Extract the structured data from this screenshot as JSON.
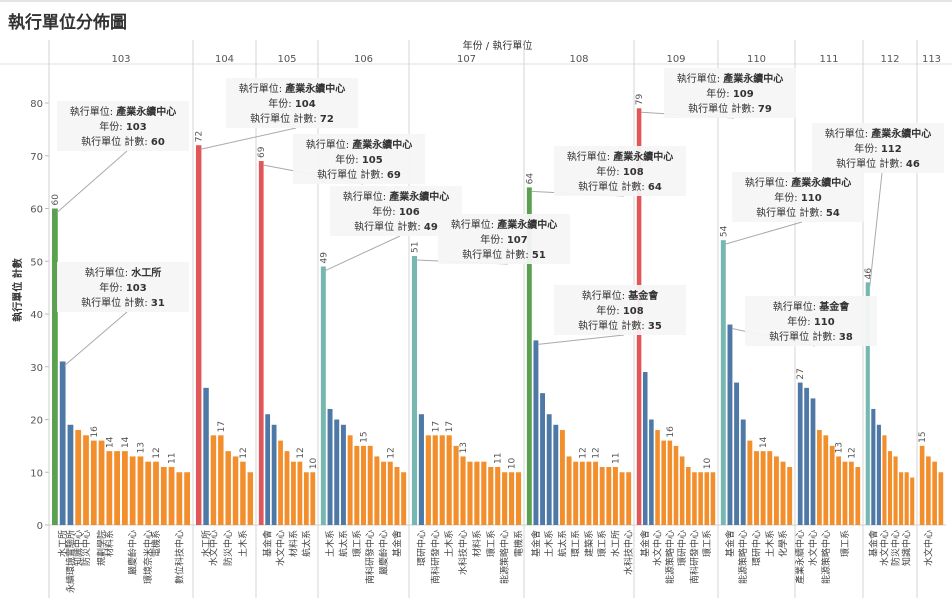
{
  "page": {
    "title": "執行單位分佈圖"
  },
  "chart_data": {
    "type": "bar",
    "title": "執行單位分佈圖",
    "xlabel": "年份 / 執行單位",
    "ylabel": "執行單位 計數",
    "ylim": [
      0,
      80
    ],
    "yticks": [
      0,
      10,
      20,
      30,
      40,
      50,
      60,
      70,
      80
    ],
    "grid": false,
    "colors": {
      "產業永續中心": "#59a14f",
      "水工所": "#4e79a7",
      "default": "#f28e2b",
      "highlight_104": "#e15759",
      "highlight_teal": "#76b7b2"
    },
    "groups": [
      {
        "year": "103",
        "bars": [
          {
            "label": "",
            "value": 60,
            "color": "#59a14f",
            "data_label": "60"
          },
          {
            "label": "水工所",
            "value": 31,
            "color": "#4e79a7"
          },
          {
            "label": "永續環境實驗所",
            "value": 19,
            "color": "#4e79a7"
          },
          {
            "label": "知識中心",
            "value": 18,
            "color": "#f28e2b"
          },
          {
            "label": "防災中心",
            "value": 17,
            "color": "#f28e2b"
          },
          {
            "label": "",
            "value": 16,
            "color": "#f28e2b",
            "data_label": "16"
          },
          {
            "label": "規劃學院",
            "value": 16,
            "color": "#f28e2b"
          },
          {
            "label": "材料系",
            "value": 14,
            "color": "#f28e2b",
            "data_label": "14"
          },
          {
            "label": "",
            "value": 14,
            "color": "#f28e2b"
          },
          {
            "label": "",
            "value": 14,
            "color": "#f28e2b",
            "data_label": "14"
          },
          {
            "label": "嚴慶齡中心",
            "value": 13,
            "color": "#f28e2b"
          },
          {
            "label": "",
            "value": 13,
            "color": "#f28e2b",
            "data_label": "13"
          },
          {
            "label": "環境奈米中心",
            "value": 12,
            "color": "#f28e2b"
          },
          {
            "label": "電機系",
            "value": 12,
            "color": "#f28e2b",
            "data_label": "12"
          },
          {
            "label": "",
            "value": 11,
            "color": "#f28e2b"
          },
          {
            "label": "",
            "value": 11,
            "color": "#f28e2b",
            "data_label": "11"
          },
          {
            "label": "數位科技中心",
            "value": 10,
            "color": "#f28e2b"
          },
          {
            "label": "",
            "value": 10,
            "color": "#f28e2b"
          }
        ]
      },
      {
        "year": "104",
        "bars": [
          {
            "label": "",
            "value": 72,
            "color": "#e15759",
            "data_label": "72"
          },
          {
            "label": "水工所",
            "value": 26,
            "color": "#4e79a7"
          },
          {
            "label": "水文中心",
            "value": 17,
            "color": "#f28e2b"
          },
          {
            "label": "",
            "value": 17,
            "color": "#f28e2b",
            "data_label": "17"
          },
          {
            "label": "防災中心",
            "value": 14,
            "color": "#f28e2b"
          },
          {
            "label": "",
            "value": 13,
            "color": "#f28e2b"
          },
          {
            "label": "土木系",
            "value": 12,
            "color": "#f28e2b",
            "data_label": "12"
          },
          {
            "label": "",
            "value": 10,
            "color": "#f28e2b"
          }
        ]
      },
      {
        "year": "105",
        "bars": [
          {
            "label": "",
            "value": 69,
            "color": "#e15759",
            "data_label": "69"
          },
          {
            "label": "基金會",
            "value": 21,
            "color": "#4e79a7"
          },
          {
            "label": "",
            "value": 19,
            "color": "#4e79a7"
          },
          {
            "label": "水文中心",
            "value": 16,
            "color": "#f28e2b"
          },
          {
            "label": "",
            "value": 14,
            "color": "#f28e2b"
          },
          {
            "label": "材料系",
            "value": 12,
            "color": "#f28e2b"
          },
          {
            "label": "",
            "value": 12,
            "color": "#f28e2b",
            "data_label": "12"
          },
          {
            "label": "航太系",
            "value": 10,
            "color": "#f28e2b"
          },
          {
            "label": "",
            "value": 10,
            "color": "#f28e2b",
            "data_label": "10"
          }
        ]
      },
      {
        "year": "106",
        "bars": [
          {
            "label": "",
            "value": 49,
            "color": "#76b7b2",
            "data_label": "49"
          },
          {
            "label": "土木系",
            "value": 22,
            "color": "#4e79a7"
          },
          {
            "label": "",
            "value": 20,
            "color": "#4e79a7"
          },
          {
            "label": "航太系",
            "value": 19,
            "color": "#4e79a7"
          },
          {
            "label": "",
            "value": 17,
            "color": "#f28e2b"
          },
          {
            "label": "環工系",
            "value": 15,
            "color": "#f28e2b"
          },
          {
            "label": "",
            "value": 15,
            "color": "#f28e2b",
            "data_label": "15"
          },
          {
            "label": "南科研發中心",
            "value": 15,
            "color": "#f28e2b"
          },
          {
            "label": "",
            "value": 13,
            "color": "#f28e2b"
          },
          {
            "label": "嚴慶齡中心",
            "value": 12,
            "color": "#f28e2b"
          },
          {
            "label": "",
            "value": 12,
            "color": "#f28e2b",
            "data_label": "12"
          },
          {
            "label": "基金會",
            "value": 11,
            "color": "#f28e2b"
          },
          {
            "label": "",
            "value": 10,
            "color": "#f28e2b"
          }
        ]
      },
      {
        "year": "107",
        "bars": [
          {
            "label": "",
            "value": 51,
            "color": "#76b7b2",
            "data_label": "51"
          },
          {
            "label": "環研中心",
            "value": 21,
            "color": "#4e79a7"
          },
          {
            "label": "",
            "value": 17,
            "color": "#f28e2b"
          },
          {
            "label": "南科研發中心",
            "value": 17,
            "color": "#f28e2b",
            "data_label": "17"
          },
          {
            "label": "",
            "value": 17,
            "color": "#f28e2b"
          },
          {
            "label": "土木系",
            "value": 17,
            "color": "#f28e2b",
            "data_label": "17"
          },
          {
            "label": "",
            "value": 15,
            "color": "#f28e2b"
          },
          {
            "label": "水科技中心",
            "value": 13,
            "color": "#f28e2b",
            "data_label": "13"
          },
          {
            "label": "",
            "value": 12,
            "color": "#f28e2b"
          },
          {
            "label": "材料系",
            "value": 12,
            "color": "#f28e2b"
          },
          {
            "label": "",
            "value": 12,
            "color": "#f28e2b"
          },
          {
            "label": "環工系",
            "value": 11,
            "color": "#f28e2b"
          },
          {
            "label": "",
            "value": 11,
            "color": "#f28e2b",
            "data_label": "11"
          },
          {
            "label": "能源策略中心",
            "value": 10,
            "color": "#f28e2b"
          },
          {
            "label": "",
            "value": 10,
            "color": "#f28e2b",
            "data_label": "10"
          },
          {
            "label": "電機系",
            "value": 10,
            "color": "#f28e2b"
          }
        ]
      },
      {
        "year": "108",
        "bars": [
          {
            "label": "",
            "value": 64,
            "color": "#59a14f",
            "data_label": "64"
          },
          {
            "label": "基金會",
            "value": 35,
            "color": "#4e79a7"
          },
          {
            "label": "",
            "value": 25,
            "color": "#4e79a7"
          },
          {
            "label": "土木系",
            "value": 21,
            "color": "#4e79a7"
          },
          {
            "label": "",
            "value": 19,
            "color": "#4e79a7"
          },
          {
            "label": "航太系",
            "value": 18,
            "color": "#f28e2b"
          },
          {
            "label": "",
            "value": 13,
            "color": "#f28e2b"
          },
          {
            "label": "環工系",
            "value": 12,
            "color": "#f28e2b"
          },
          {
            "label": "",
            "value": 12,
            "color": "#f28e2b",
            "data_label": "12"
          },
          {
            "label": "建築系",
            "value": 12,
            "color": "#f28e2b"
          },
          {
            "label": "",
            "value": 12,
            "color": "#f28e2b",
            "data_label": "12"
          },
          {
            "label": "環工系",
            "value": 11,
            "color": "#f28e2b"
          },
          {
            "label": "",
            "value": 11,
            "color": "#f28e2b"
          },
          {
            "label": "水工所",
            "value": 11,
            "color": "#f28e2b",
            "data_label": "11"
          },
          {
            "label": "",
            "value": 10,
            "color": "#f28e2b"
          },
          {
            "label": "水科技中心",
            "value": 10,
            "color": "#f28e2b"
          }
        ]
      },
      {
        "year": "109",
        "bars": [
          {
            "label": "",
            "value": 79,
            "color": "#e15759",
            "data_label": "79"
          },
          {
            "label": "基金會",
            "value": 29,
            "color": "#4e79a7"
          },
          {
            "label": "",
            "value": 20,
            "color": "#4e79a7"
          },
          {
            "label": "水文中心",
            "value": 18,
            "color": "#f28e2b"
          },
          {
            "label": "",
            "value": 16,
            "color": "#f28e2b"
          },
          {
            "label": "能源策略中心",
            "value": 16,
            "color": "#f28e2b",
            "data_label": "16"
          },
          {
            "label": "",
            "value": 15,
            "color": "#f28e2b"
          },
          {
            "label": "環研中心",
            "value": 13,
            "color": "#f28e2b"
          },
          {
            "label": "",
            "value": 11,
            "color": "#f28e2b"
          },
          {
            "label": "南科研發中心",
            "value": 10,
            "color": "#f28e2b"
          },
          {
            "label": "",
            "value": 10,
            "color": "#f28e2b"
          },
          {
            "label": "環工系",
            "value": 10,
            "color": "#f28e2b",
            "data_label": "10"
          },
          {
            "label": "",
            "value": 10,
            "color": "#f28e2b"
          }
        ]
      },
      {
        "year": "110",
        "bars": [
          {
            "label": "",
            "value": 54,
            "color": "#76b7b2",
            "data_label": "54"
          },
          {
            "label": "基金會",
            "value": 38,
            "color": "#4e79a7"
          },
          {
            "label": "",
            "value": 27,
            "color": "#4e79a7"
          },
          {
            "label": "能源策略中心",
            "value": 20,
            "color": "#4e79a7"
          },
          {
            "label": "",
            "value": 16,
            "color": "#f28e2b"
          },
          {
            "label": "環研中心",
            "value": 14,
            "color": "#f28e2b"
          },
          {
            "label": "",
            "value": 14,
            "color": "#f28e2b",
            "data_label": "14"
          },
          {
            "label": "土木系",
            "value": 14,
            "color": "#f28e2b"
          },
          {
            "label": "",
            "value": 13,
            "color": "#f28e2b"
          },
          {
            "label": "化學系",
            "value": 12,
            "color": "#f28e2b"
          },
          {
            "label": "",
            "value": 11,
            "color": "#f28e2b"
          }
        ]
      },
      {
        "year": "111",
        "bars": [
          {
            "label": "產業永續中心",
            "value": 27,
            "color": "#4e79a7",
            "data_label": "27"
          },
          {
            "label": "",
            "value": 26,
            "color": "#4e79a7"
          },
          {
            "label": "水文中心",
            "value": 24,
            "color": "#4e79a7"
          },
          {
            "label": "",
            "value": 18,
            "color": "#f28e2b"
          },
          {
            "label": "能源策略中心",
            "value": 17,
            "color": "#f28e2b"
          },
          {
            "label": "",
            "value": 15,
            "color": "#f28e2b"
          },
          {
            "label": "",
            "value": 13,
            "color": "#f28e2b",
            "data_label": "13"
          },
          {
            "label": "環工系",
            "value": 12,
            "color": "#f28e2b"
          },
          {
            "label": "",
            "value": 12,
            "color": "#f28e2b",
            "data_label": "12"
          },
          {
            "label": "",
            "value": 11,
            "color": "#f28e2b"
          }
        ]
      },
      {
        "year": "112",
        "bars": [
          {
            "label": "",
            "value": 46,
            "color": "#76b7b2",
            "data_label": "46"
          },
          {
            "label": "基金會",
            "value": 22,
            "color": "#4e79a7"
          },
          {
            "label": "",
            "value": 19,
            "color": "#4e79a7"
          },
          {
            "label": "水文中心",
            "value": 17,
            "color": "#f28e2b"
          },
          {
            "label": "",
            "value": 14,
            "color": "#f28e2b"
          },
          {
            "label": "防災中心",
            "value": 13,
            "color": "#f28e2b"
          },
          {
            "label": "",
            "value": 10,
            "color": "#f28e2b"
          },
          {
            "label": "知識中心",
            "value": 10,
            "color": "#f28e2b"
          },
          {
            "label": "",
            "value": 9,
            "color": "#f28e2b"
          }
        ]
      },
      {
        "year": "113",
        "bars": [
          {
            "label": "",
            "value": 15,
            "color": "#f28e2b",
            "data_label": "15"
          },
          {
            "label": "水文中心",
            "value": 13,
            "color": "#f28e2b"
          },
          {
            "label": "",
            "value": 12,
            "color": "#f28e2b"
          },
          {
            "label": "",
            "value": 10,
            "color": "#f28e2b"
          }
        ]
      }
    ],
    "annotations": [
      {
        "group": 0,
        "bar": 0,
        "lines": [
          "執行單位: 產業永續中心",
          "年份: 103",
          "執行單位 計數: 60"
        ]
      },
      {
        "group": 0,
        "bar": 1,
        "lines": [
          "執行單位: 水工所",
          "年份: 103",
          "執行單位 計數: 31"
        ]
      },
      {
        "group": 1,
        "bar": 0,
        "lines": [
          "執行單位: 產業永續中心",
          "年份: 104",
          "執行單位 計數: 72"
        ]
      },
      {
        "group": 2,
        "bar": 0,
        "lines": [
          "執行單位: 產業永續中心",
          "年份: 105",
          "執行單位 計數: 69"
        ]
      },
      {
        "group": 3,
        "bar": 0,
        "lines": [
          "執行單位: 產業永續中心",
          "年份: 106",
          "執行單位 計數: 49"
        ]
      },
      {
        "group": 4,
        "bar": 0,
        "lines": [
          "執行單位: 產業永續中心",
          "年份: 107",
          "執行單位 計數: 51"
        ]
      },
      {
        "group": 5,
        "bar": 0,
        "lines": [
          "執行單位: 產業永續中心",
          "年份: 108",
          "執行單位 計數: 64"
        ]
      },
      {
        "group": 5,
        "bar": 1,
        "lines": [
          "執行單位: 基金會",
          "年份: 108",
          "執行單位 計數: 35"
        ]
      },
      {
        "group": 6,
        "bar": 0,
        "lines": [
          "執行單位: 產業永續中心",
          "年份: 109",
          "執行單位 計數: 79"
        ]
      },
      {
        "group": 7,
        "bar": 0,
        "lines": [
          "執行單位: 產業永續中心",
          "年份: 110",
          "執行單位 計數: 54"
        ]
      },
      {
        "group": 7,
        "bar": 1,
        "lines": [
          "執行單位: 基金會",
          "年份: 110",
          "執行單位 計數: 38"
        ]
      },
      {
        "group": 9,
        "bar": 0,
        "lines": [
          "執行單位: 產業永續中心",
          "年份: 112",
          "執行單位 計數: 46"
        ]
      }
    ]
  }
}
